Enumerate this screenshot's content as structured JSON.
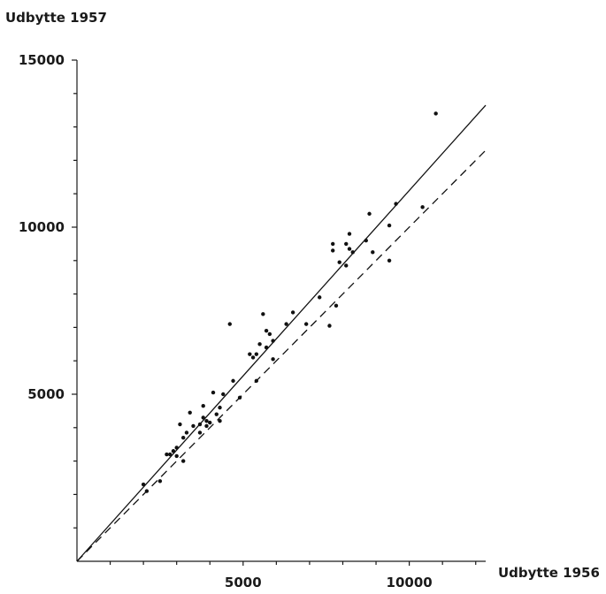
{
  "chart_data": {
    "type": "scatter",
    "title": "",
    "ylabel": "Udbytte 1957",
    "xlabel": "Udbytte 1956",
    "xlim": [
      0,
      12300
    ],
    "ylim": [
      0,
      15000
    ],
    "x_ticks": [
      5000,
      10000
    ],
    "x_minor_ticks": [
      1000,
      2000,
      3000,
      4000,
      6000,
      7000,
      8000,
      9000,
      11000,
      12000
    ],
    "y_ticks": [
      5000,
      10000,
      15000
    ],
    "y_minor_ticks": [
      1000,
      2000,
      3000,
      4000,
      6000,
      7000,
      8000,
      9000,
      11000,
      12000,
      13000,
      14000
    ],
    "grid": false,
    "legend": "none",
    "points": [
      {
        "x": 2000,
        "y": 2300
      },
      {
        "x": 2100,
        "y": 2100
      },
      {
        "x": 2500,
        "y": 2400
      },
      {
        "x": 2700,
        "y": 3200
      },
      {
        "x": 2800,
        "y": 3200
      },
      {
        "x": 2900,
        "y": 3300
      },
      {
        "x": 3000,
        "y": 3400
      },
      {
        "x": 3000,
        "y": 3150
      },
      {
        "x": 3100,
        "y": 4100
      },
      {
        "x": 3200,
        "y": 3700
      },
      {
        "x": 3200,
        "y": 3000
      },
      {
        "x": 3300,
        "y": 3850
      },
      {
        "x": 3400,
        "y": 4450
      },
      {
        "x": 3500,
        "y": 4050
      },
      {
        "x": 3700,
        "y": 4100
      },
      {
        "x": 3700,
        "y": 3850
      },
      {
        "x": 3800,
        "y": 4650
      },
      {
        "x": 3800,
        "y": 4300
      },
      {
        "x": 3900,
        "y": 4050
      },
      {
        "x": 3900,
        "y": 4200
      },
      {
        "x": 4000,
        "y": 4150
      },
      {
        "x": 4100,
        "y": 5050
      },
      {
        "x": 4200,
        "y": 4400
      },
      {
        "x": 4300,
        "y": 4600
      },
      {
        "x": 4300,
        "y": 4200
      },
      {
        "x": 4400,
        "y": 5000
      },
      {
        "x": 4600,
        "y": 7100
      },
      {
        "x": 4700,
        "y": 5400
      },
      {
        "x": 4900,
        "y": 4900
      },
      {
        "x": 5200,
        "y": 6200
      },
      {
        "x": 5300,
        "y": 6100
      },
      {
        "x": 5400,
        "y": 6200
      },
      {
        "x": 5400,
        "y": 5400
      },
      {
        "x": 5500,
        "y": 6500
      },
      {
        "x": 5600,
        "y": 7400
      },
      {
        "x": 5700,
        "y": 6900
      },
      {
        "x": 5700,
        "y": 6400
      },
      {
        "x": 5800,
        "y": 6800
      },
      {
        "x": 5900,
        "y": 6600
      },
      {
        "x": 5900,
        "y": 6050
      },
      {
        "x": 6300,
        "y": 7100
      },
      {
        "x": 6500,
        "y": 7450
      },
      {
        "x": 6900,
        "y": 7100
      },
      {
        "x": 7300,
        "y": 7900
      },
      {
        "x": 7600,
        "y": 7050
      },
      {
        "x": 7700,
        "y": 9500
      },
      {
        "x": 7700,
        "y": 9300
      },
      {
        "x": 7800,
        "y": 7650
      },
      {
        "x": 7900,
        "y": 8950
      },
      {
        "x": 8100,
        "y": 9500
      },
      {
        "x": 8100,
        "y": 8850
      },
      {
        "x": 8200,
        "y": 9800
      },
      {
        "x": 8200,
        "y": 9350
      },
      {
        "x": 8300,
        "y": 9250
      },
      {
        "x": 8700,
        "y": 9600
      },
      {
        "x": 8800,
        "y": 10400
      },
      {
        "x": 8900,
        "y": 9250
      },
      {
        "x": 9400,
        "y": 10050
      },
      {
        "x": 9400,
        "y": 9000
      },
      {
        "x": 9600,
        "y": 10700
      },
      {
        "x": 10400,
        "y": 10600
      },
      {
        "x": 10800,
        "y": 13400
      }
    ],
    "lines": [
      {
        "style": "solid",
        "x": [
          0,
          12300
        ],
        "y": [
          0,
          13650
        ]
      },
      {
        "style": "dashed",
        "x": [
          0,
          12300
        ],
        "y": [
          0,
          12300
        ]
      }
    ]
  }
}
